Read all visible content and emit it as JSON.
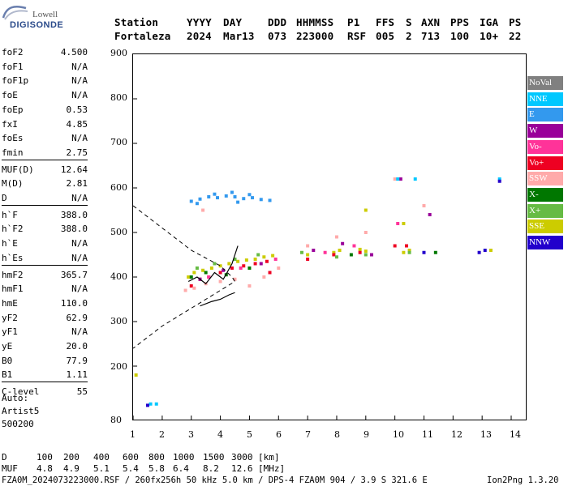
{
  "logo": {
    "brand": "Lowell",
    "product": "DIGISONDE"
  },
  "header": {
    "row1": [
      "Station",
      "YYYY",
      "DAY",
      "DDD",
      "HHMMSS",
      "P1",
      "FFS",
      "S",
      "AXN",
      "PPS",
      "IGA",
      "PS"
    ],
    "row2": [
      "Fortaleza",
      "2024",
      "Mar13",
      "073",
      "223000",
      "RSF",
      "005",
      "2",
      "713",
      "100",
      "10+",
      "22"
    ]
  },
  "params": [
    {
      "label": "foF2",
      "value": "4.500"
    },
    {
      "label": "foF1",
      "value": "N/A"
    },
    {
      "label": "foF1p",
      "value": "N/A"
    },
    {
      "label": "foE",
      "value": "N/A"
    },
    {
      "label": "foEp",
      "value": "0.53"
    },
    {
      "label": "fxI",
      "value": "4.85"
    },
    {
      "label": "foEs",
      "value": "N/A"
    },
    {
      "label": "fmin",
      "value": "2.75"
    },
    {
      "label": "MUF(D)",
      "value": "12.64"
    },
    {
      "label": "M(D)",
      "value": "2.81"
    },
    {
      "label": "D",
      "value": "N/A"
    },
    {
      "label": "h`F",
      "value": "388.0"
    },
    {
      "label": "h`F2",
      "value": "388.0"
    },
    {
      "label": "h`E",
      "value": "N/A"
    },
    {
      "label": "h`Es",
      "value": "N/A"
    },
    {
      "label": "hmF2",
      "value": "365.7"
    },
    {
      "label": "hmF1",
      "value": "N/A"
    },
    {
      "label": "hmE",
      "value": "110.0"
    },
    {
      "label": "yF2",
      "value": "62.9"
    },
    {
      "label": "yF1",
      "value": "N/A"
    },
    {
      "label": "yE",
      "value": "20.0"
    },
    {
      "label": "B0",
      "value": "77.9"
    },
    {
      "label": "B1",
      "value": "1.11"
    },
    {
      "label": "C-level",
      "value": "55"
    }
  ],
  "auto": {
    "line1": "Auto:",
    "line2": "Artist5",
    "line3": "500200"
  },
  "legend": [
    {
      "label": "NoVal",
      "color": "#808080"
    },
    {
      "label": "NNE",
      "color": "#00c8ff"
    },
    {
      "label": "E",
      "color": "#3399ee"
    },
    {
      "label": "W",
      "color": "#990099"
    },
    {
      "label": "Vo-",
      "color": "#ff3399"
    },
    {
      "label": "Vo+",
      "color": "#ee0022"
    },
    {
      "label": "SSW",
      "color": "#ffaaaa"
    },
    {
      "label": "X-",
      "color": "#007700"
    },
    {
      "label": "X+",
      "color": "#66bb44"
    },
    {
      "label": "SSE",
      "color": "#cccc00"
    },
    {
      "label": "NNW",
      "color": "#2200cc"
    }
  ],
  "bottom": {
    "d_label": "D",
    "d_values": [
      "100",
      "200",
      "400",
      "600",
      "800",
      "1000",
      "1500",
      "3000",
      "[km]"
    ],
    "muf_label": "MUF",
    "muf_values": [
      "4.8",
      "4.9",
      "5.1",
      "5.4",
      "5.8",
      "6.4",
      "8.2",
      "12.6",
      "[MHz]"
    ],
    "footer": "FZA0M_2024073223000.RSF / 260fx256h 50 kHz 5.0 km / DPS-4 FZA0M 904 / 3.9 S 321.6 E",
    "version": "Ion2Png 1.3.20"
  },
  "chart_data": {
    "type": "scatter",
    "x_ticks": [
      "1",
      "2",
      "3",
      "4",
      "5",
      "6",
      "7",
      "8",
      "9",
      "10",
      "11",
      "12",
      "13",
      "14"
    ],
    "y_ticks": [
      "80",
      "200",
      "300",
      "400",
      "500",
      "600",
      "700",
      "800",
      "900"
    ],
    "xlim": [
      1,
      14
    ],
    "ylim": [
      80,
      900
    ],
    "series": [
      {
        "color": "#3399ee",
        "points": [
          [
            3.0,
            570
          ],
          [
            3.3,
            575
          ],
          [
            3.6,
            580
          ],
          [
            3.9,
            578
          ],
          [
            4.2,
            582
          ],
          [
            4.5,
            580
          ],
          [
            4.8,
            576
          ],
          [
            5.1,
            578
          ],
          [
            5.4,
            574
          ],
          [
            5.7,
            572
          ],
          [
            3.2,
            565
          ],
          [
            3.8,
            586
          ],
          [
            4.4,
            590
          ],
          [
            5.0,
            585
          ],
          [
            4.6,
            568
          ]
        ]
      },
      {
        "color": "#cccc00",
        "points": [
          [
            2.9,
            400
          ],
          [
            3.1,
            410
          ],
          [
            3.4,
            415
          ],
          [
            3.7,
            420
          ],
          [
            4.0,
            425
          ],
          [
            4.3,
            430
          ],
          [
            4.6,
            435
          ],
          [
            4.9,
            438
          ],
          [
            5.2,
            440
          ],
          [
            5.5,
            445
          ],
          [
            5.8,
            448
          ],
          [
            7.0,
            450
          ],
          [
            7.9,
            455
          ],
          [
            8.1,
            460
          ],
          [
            8.8,
            462
          ],
          [
            9.0,
            458
          ],
          [
            10.3,
            455
          ],
          [
            10.5,
            460
          ],
          [
            13.3,
            460
          ],
          [
            1.1,
            180
          ],
          [
            9.0,
            550
          ],
          [
            10.3,
            520
          ]
        ]
      },
      {
        "color": "#ee0022",
        "points": [
          [
            3.0,
            380
          ],
          [
            3.3,
            395
          ],
          [
            3.6,
            400
          ],
          [
            4.0,
            410
          ],
          [
            4.4,
            420
          ],
          [
            4.8,
            425
          ],
          [
            5.2,
            430
          ],
          [
            5.6,
            435
          ],
          [
            7.0,
            440
          ],
          [
            7.9,
            450
          ],
          [
            8.8,
            455
          ],
          [
            10.4,
            470
          ],
          [
            10.0,
            470
          ],
          [
            5.7,
            410
          ]
        ]
      },
      {
        "color": "#ffaaaa",
        "points": [
          [
            2.8,
            370
          ],
          [
            3.1,
            375
          ],
          [
            3.5,
            385
          ],
          [
            4.0,
            390
          ],
          [
            4.5,
            395
          ],
          [
            5.0,
            380
          ],
          [
            5.5,
            400
          ],
          [
            6.0,
            420
          ],
          [
            7.0,
            470
          ],
          [
            8.0,
            490
          ],
          [
            9.0,
            500
          ],
          [
            10.0,
            620
          ],
          [
            11.0,
            560
          ],
          [
            3.4,
            550
          ]
        ]
      },
      {
        "color": "#66bb44",
        "points": [
          [
            3.2,
            420
          ],
          [
            3.8,
            430
          ],
          [
            4.5,
            440
          ],
          [
            5.3,
            450
          ],
          [
            6.8,
            455
          ],
          [
            8.0,
            445
          ],
          [
            9.0,
            450
          ],
          [
            10.5,
            455
          ]
        ]
      },
      {
        "color": "#007700",
        "points": [
          [
            3.0,
            400
          ],
          [
            3.5,
            410
          ],
          [
            4.2,
            405
          ],
          [
            5.0,
            420
          ],
          [
            11.4,
            455
          ],
          [
            8.5,
            450
          ]
        ]
      },
      {
        "color": "#990099",
        "points": [
          [
            3.3,
            395
          ],
          [
            4.1,
            415
          ],
          [
            5.4,
            430
          ],
          [
            7.2,
            460
          ],
          [
            8.2,
            475
          ],
          [
            9.2,
            450
          ],
          [
            11.2,
            540
          ],
          [
            10.2,
            620
          ]
        ]
      },
      {
        "color": "#ff3399",
        "points": [
          [
            3.6,
            400
          ],
          [
            4.7,
            420
          ],
          [
            5.9,
            440
          ],
          [
            7.6,
            455
          ],
          [
            8.6,
            470
          ],
          [
            10.1,
            520
          ]
        ]
      },
      {
        "color": "#00c8ff",
        "points": [
          [
            10.1,
            620
          ],
          [
            10.7,
            620
          ],
          [
            1.6,
            115
          ],
          [
            1.8,
            115
          ],
          [
            13.6,
            620
          ]
        ]
      },
      {
        "color": "#2200cc",
        "points": [
          [
            11.0,
            455
          ],
          [
            12.9,
            455
          ],
          [
            13.1,
            460
          ],
          [
            13.6,
            615
          ],
          [
            1.5,
            112
          ]
        ]
      }
    ],
    "dashed_curve": [
      [
        1,
        560
      ],
      [
        2,
        510
      ],
      [
        3,
        460
      ],
      [
        4,
        425
      ],
      [
        4.4,
        400
      ],
      [
        4.5,
        390
      ],
      [
        4.0,
        370
      ],
      [
        3.0,
        330
      ],
      [
        2.0,
        290
      ],
      [
        1,
        240
      ]
    ],
    "trace_lines": [
      [
        [
          2.9,
          390
        ],
        [
          3.2,
          400
        ],
        [
          3.5,
          385
        ],
        [
          3.8,
          410
        ],
        [
          4.1,
          395
        ],
        [
          4.4,
          430
        ],
        [
          4.6,
          470
        ]
      ],
      [
        [
          3.3,
          335
        ],
        [
          3.7,
          345
        ],
        [
          4.0,
          350
        ],
        [
          4.3,
          360
        ],
        [
          4.5,
          365
        ]
      ]
    ]
  }
}
